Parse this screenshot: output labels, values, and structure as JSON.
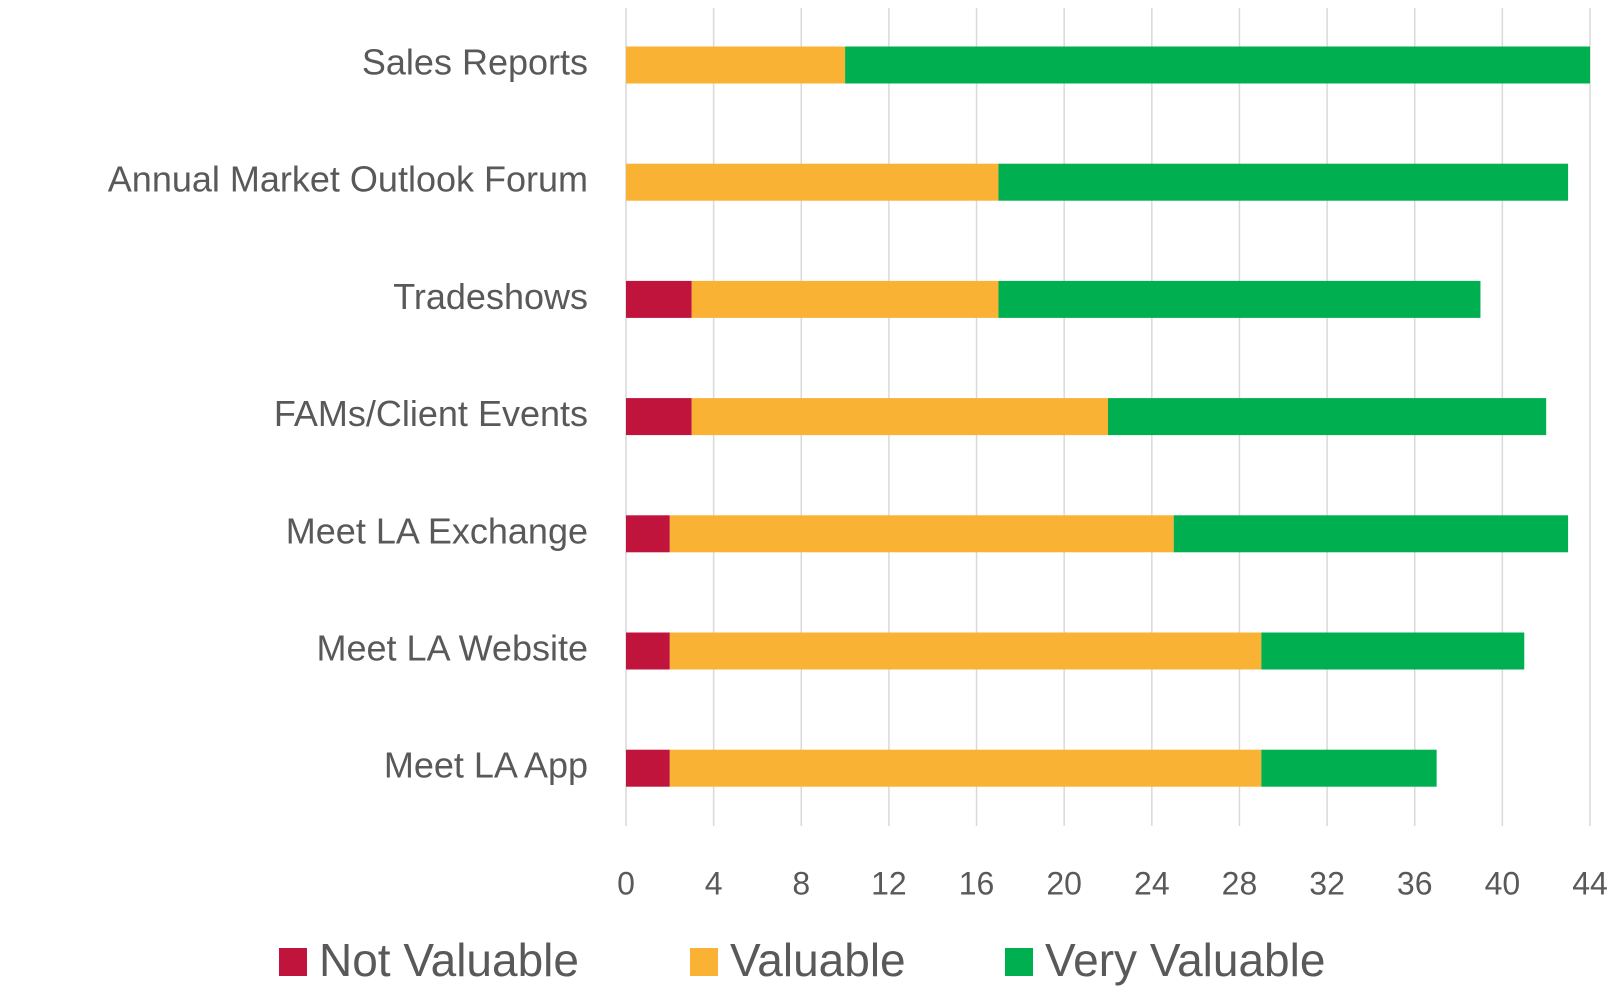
{
  "chart_data": {
    "type": "stacked_barh",
    "categories": [
      "Sales Reports",
      "Annual Market Outlook Forum",
      "Tradeshows",
      "FAMs/Client Events",
      "Meet LA Exchange",
      "Meet LA Website",
      "Meet LA App"
    ],
    "series": [
      {
        "name": "Not Valuable",
        "color": "#c0143c",
        "values": [
          0,
          0,
          3,
          3,
          2,
          2,
          2
        ]
      },
      {
        "name": "Valuable",
        "color": "#f9b233",
        "values": [
          10,
          17,
          14,
          19,
          23,
          27,
          27
        ]
      },
      {
        "name": "Very Valuable",
        "color": "#00b050",
        "values": [
          34,
          26,
          22,
          20,
          18,
          12,
          8
        ]
      }
    ],
    "xlim": [
      0,
      44
    ],
    "xticks": [
      0,
      4,
      8,
      12,
      16,
      20,
      24,
      28,
      32,
      36,
      40,
      44
    ],
    "grid": true,
    "legend": "bottom"
  }
}
